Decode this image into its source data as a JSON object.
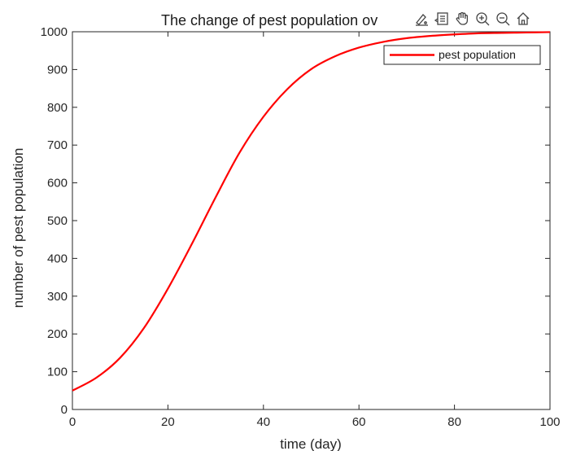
{
  "toolbar": {
    "icons": [
      "brush-edit-icon",
      "data-tips-icon",
      "pan-hand-icon",
      "zoom-in-icon",
      "zoom-out-icon",
      "home-restore-icon"
    ]
  },
  "chart_data": {
    "type": "line",
    "title": "The change of pest population ov",
    "xlabel": "time (day)",
    "ylabel": "number of pest population",
    "xlim": [
      0,
      100
    ],
    "ylim": [
      0,
      1000
    ],
    "xticks": [
      0,
      20,
      40,
      60,
      80,
      100
    ],
    "yticks": [
      0,
      100,
      200,
      300,
      400,
      500,
      600,
      700,
      800,
      900,
      1000
    ],
    "grid": true,
    "legend_position": "top-right",
    "series": [
      {
        "name": "pest population",
        "color": "#ff0000",
        "x": [
          0,
          5,
          10,
          15,
          20,
          25,
          30,
          35,
          40,
          45,
          50,
          55,
          60,
          65,
          70,
          75,
          80,
          85,
          90,
          95,
          100
        ],
        "y": [
          50,
          84,
          137,
          216,
          320,
          438,
          562,
          680,
          775,
          848,
          901,
          935,
          958,
          973,
          983,
          989,
          993,
          996,
          997,
          998,
          999
        ]
      }
    ]
  }
}
